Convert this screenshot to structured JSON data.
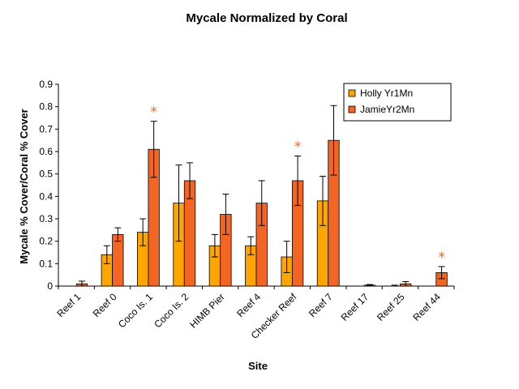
{
  "chart_data": {
    "type": "bar",
    "title": "Mycale Normalized by Coral",
    "xlabel": "Site",
    "ylabel": "Mycale % Cover/Coral % Cover",
    "ylim": [
      0,
      0.9
    ],
    "yticks": [
      "0",
      "0.1",
      "0.2",
      "0.3",
      "0.4",
      "0.5",
      "0.6",
      "0.7",
      "0.8",
      "0.9"
    ],
    "grid": false,
    "legend_position": "top-right",
    "categories": [
      "Reef 1",
      "Reef 0",
      "Coco Is. 1",
      "Coco Is. 2",
      "HIMB Pier",
      "Reef 4",
      "Checker Reef",
      "Reef 7",
      "Reef 17",
      "Reef 25",
      "Reef 44"
    ],
    "series": [
      {
        "name": "Holly Yr1Mn",
        "color": "#FFA500",
        "values": [
          0,
          0.14,
          0.24,
          0.37,
          0.18,
          0.18,
          0.13,
          0.38,
          0,
          0,
          0
        ],
        "errors": [
          0,
          0.04,
          0.06,
          0.17,
          0.05,
          0.04,
          0.07,
          0.11,
          0,
          0.004,
          0
        ]
      },
      {
        "name": "JamieYr2Mn",
        "color": "#F26522",
        "values": [
          0.01,
          0.23,
          0.61,
          0.47,
          0.32,
          0.37,
          0.47,
          0.65,
          0.004,
          0.01,
          0.06
        ],
        "errors": [
          0.012,
          0.03,
          0.125,
          0.08,
          0.09,
          0.1,
          0.11,
          0.155,
          0.003,
          0.01,
          0.027
        ]
      }
    ],
    "annotations": [
      {
        "text": "*",
        "category": "Coco Is. 1",
        "series": "JamieYr2Mn",
        "color": "#F26522"
      },
      {
        "text": "*",
        "category": "Checker Reef",
        "series": "JamieYr2Mn",
        "color": "#F26522"
      },
      {
        "text": "*",
        "category": "Reef 44",
        "series": "JamieYr2Mn",
        "color": "#F26522"
      }
    ],
    "colors": {
      "axis": "#000000",
      "bar_outline": "#000000"
    }
  }
}
